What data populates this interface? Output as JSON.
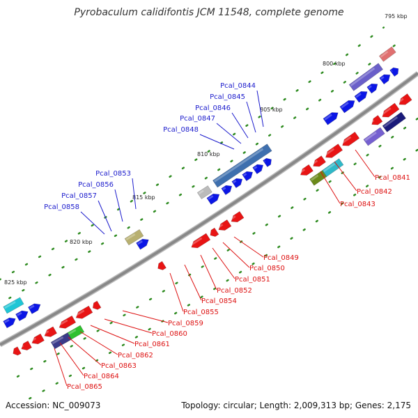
{
  "title": "Pyrobaculum calidifontis JCM 11548, complete genome",
  "footer": {
    "accession": "Accession: NC_009073",
    "summary": "Topology: circular; Length: 2,009,313 bp; Genes: 2,175"
  },
  "colors": {
    "forward_cds": "#0b16e6",
    "reverse_cds": "#e81414",
    "backbone": "#888888",
    "tick": "#2e8b20",
    "forward_label": "#1a1acc",
    "reverse_label": "#dd1111"
  },
  "scale_labels": [
    "795 kbp",
    "800 kbp",
    "805 kbp",
    "810 kbp",
    "815 kbp",
    "820 kbp",
    "825 kbp"
  ],
  "forward_labels": [
    "Pcal_0844",
    "Pcal_0845",
    "Pcal_0846",
    "Pcal_0847",
    "Pcal_0848",
    "Pcal_0853",
    "Pcal_0856",
    "Pcal_0857",
    "Pcal_0858"
  ],
  "reverse_labels": [
    "Pcal_0841",
    "Pcal_0842",
    "Pcal_0843",
    "Pcal_0849",
    "Pcal_0850",
    "Pcal_0851",
    "Pcal_0852",
    "Pcal_0854",
    "Pcal_0855",
    "Pcal_0859",
    "Pcal_0860",
    "Pcal_0861",
    "Pcal_0862",
    "Pcal_0863",
    "Pcal_0864",
    "Pcal_0865"
  ]
}
